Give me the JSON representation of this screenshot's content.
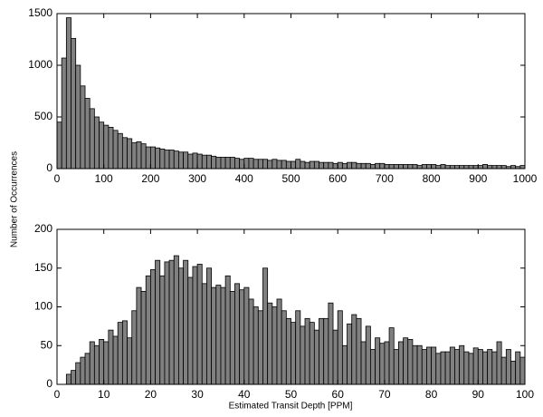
{
  "chart_data": [
    {
      "type": "histogram",
      "ylabel": "Number of Occurrences",
      "color": "#808080",
      "bins": [
        0,
        10,
        20,
        30,
        40,
        50,
        60,
        70,
        80,
        90,
        100,
        110,
        120,
        130,
        140,
        150,
        160,
        170,
        180,
        190,
        200,
        210,
        220,
        230,
        240,
        250,
        260,
        270,
        280,
        290,
        300,
        310,
        320,
        330,
        340,
        350,
        360,
        370,
        380,
        390,
        400,
        410,
        420,
        430,
        440,
        450,
        460,
        470,
        480,
        490,
        500,
        510,
        520,
        530,
        540,
        550,
        560,
        570,
        580,
        590,
        600,
        610,
        620,
        630,
        640,
        650,
        660,
        670,
        680,
        690,
        700,
        710,
        720,
        730,
        740,
        750,
        760,
        770,
        780,
        790,
        800,
        810,
        820,
        830,
        840,
        850,
        860,
        870,
        880,
        890,
        900,
        910,
        920,
        930,
        940,
        950,
        960,
        970,
        980,
        990,
        1000
      ],
      "counts": [
        450,
        1070,
        1460,
        1260,
        1000,
        800,
        680,
        580,
        500,
        450,
        420,
        400,
        370,
        340,
        300,
        290,
        250,
        260,
        240,
        210,
        210,
        200,
        190,
        180,
        180,
        170,
        160,
        160,
        140,
        150,
        140,
        130,
        130,
        120,
        110,
        110,
        110,
        110,
        100,
        90,
        100,
        100,
        90,
        90,
        90,
        80,
        90,
        80,
        80,
        70,
        70,
        90,
        70,
        60,
        70,
        70,
        60,
        60,
        60,
        50,
        60,
        50,
        60,
        60,
        50,
        50,
        50,
        40,
        50,
        50,
        40,
        40,
        40,
        40,
        40,
        40,
        40,
        30,
        40,
        40,
        40,
        30,
        40,
        30,
        30,
        30,
        30,
        30,
        30,
        30,
        30,
        40,
        30,
        30,
        30,
        30,
        20,
        30,
        20,
        30
      ],
      "xlim": [
        0,
        1000
      ],
      "xticks": [
        0,
        100,
        200,
        300,
        400,
        500,
        600,
        700,
        800,
        900,
        1000
      ],
      "ylim": [
        0,
        1500
      ],
      "yticks": [
        0,
        500,
        1000,
        1500
      ]
    },
    {
      "type": "histogram",
      "xlabel": "Estimated Transit Depth [PPM]",
      "color": "#808080",
      "bins": [
        0,
        1,
        2,
        3,
        4,
        5,
        6,
        7,
        8,
        9,
        10,
        11,
        12,
        13,
        14,
        15,
        16,
        17,
        18,
        19,
        20,
        21,
        22,
        23,
        24,
        25,
        26,
        27,
        28,
        29,
        30,
        31,
        32,
        33,
        34,
        35,
        36,
        37,
        38,
        39,
        40,
        41,
        42,
        43,
        44,
        45,
        46,
        47,
        48,
        49,
        50,
        51,
        52,
        53,
        54,
        55,
        56,
        57,
        58,
        59,
        60,
        61,
        62,
        63,
        64,
        65,
        66,
        67,
        68,
        69,
        70,
        71,
        72,
        73,
        74,
        75,
        76,
        77,
        78,
        79,
        80,
        81,
        82,
        83,
        84,
        85,
        86,
        87,
        88,
        89,
        90,
        91,
        92,
        93,
        94,
        95,
        96,
        97,
        98,
        99,
        100
      ],
      "counts": [
        0,
        0,
        13,
        18,
        28,
        35,
        40,
        55,
        50,
        58,
        55,
        70,
        62,
        80,
        82,
        60,
        95,
        125,
        120,
        140,
        148,
        160,
        140,
        158,
        160,
        166,
        150,
        160,
        138,
        152,
        155,
        130,
        150,
        125,
        128,
        125,
        140,
        120,
        130,
        122,
        125,
        110,
        100,
        95,
        150,
        105,
        100,
        110,
        95,
        85,
        80,
        95,
        75,
        85,
        80,
        70,
        85,
        85,
        105,
        70,
        95,
        50,
        78,
        90,
        85,
        55,
        75,
        45,
        60,
        53,
        55,
        73,
        45,
        55,
        60,
        58,
        50,
        50,
        45,
        48,
        48,
        40,
        42,
        42,
        48,
        45,
        50,
        42,
        40,
        47,
        45,
        42,
        45,
        42,
        55,
        35,
        45,
        30,
        42,
        35
      ],
      "xlim": [
        0,
        100
      ],
      "xticks": [
        0,
        10,
        20,
        30,
        40,
        50,
        60,
        70,
        80,
        90,
        100
      ],
      "ylim": [
        0,
        200
      ],
      "yticks": [
        0,
        50,
        100,
        150,
        200
      ]
    }
  ]
}
